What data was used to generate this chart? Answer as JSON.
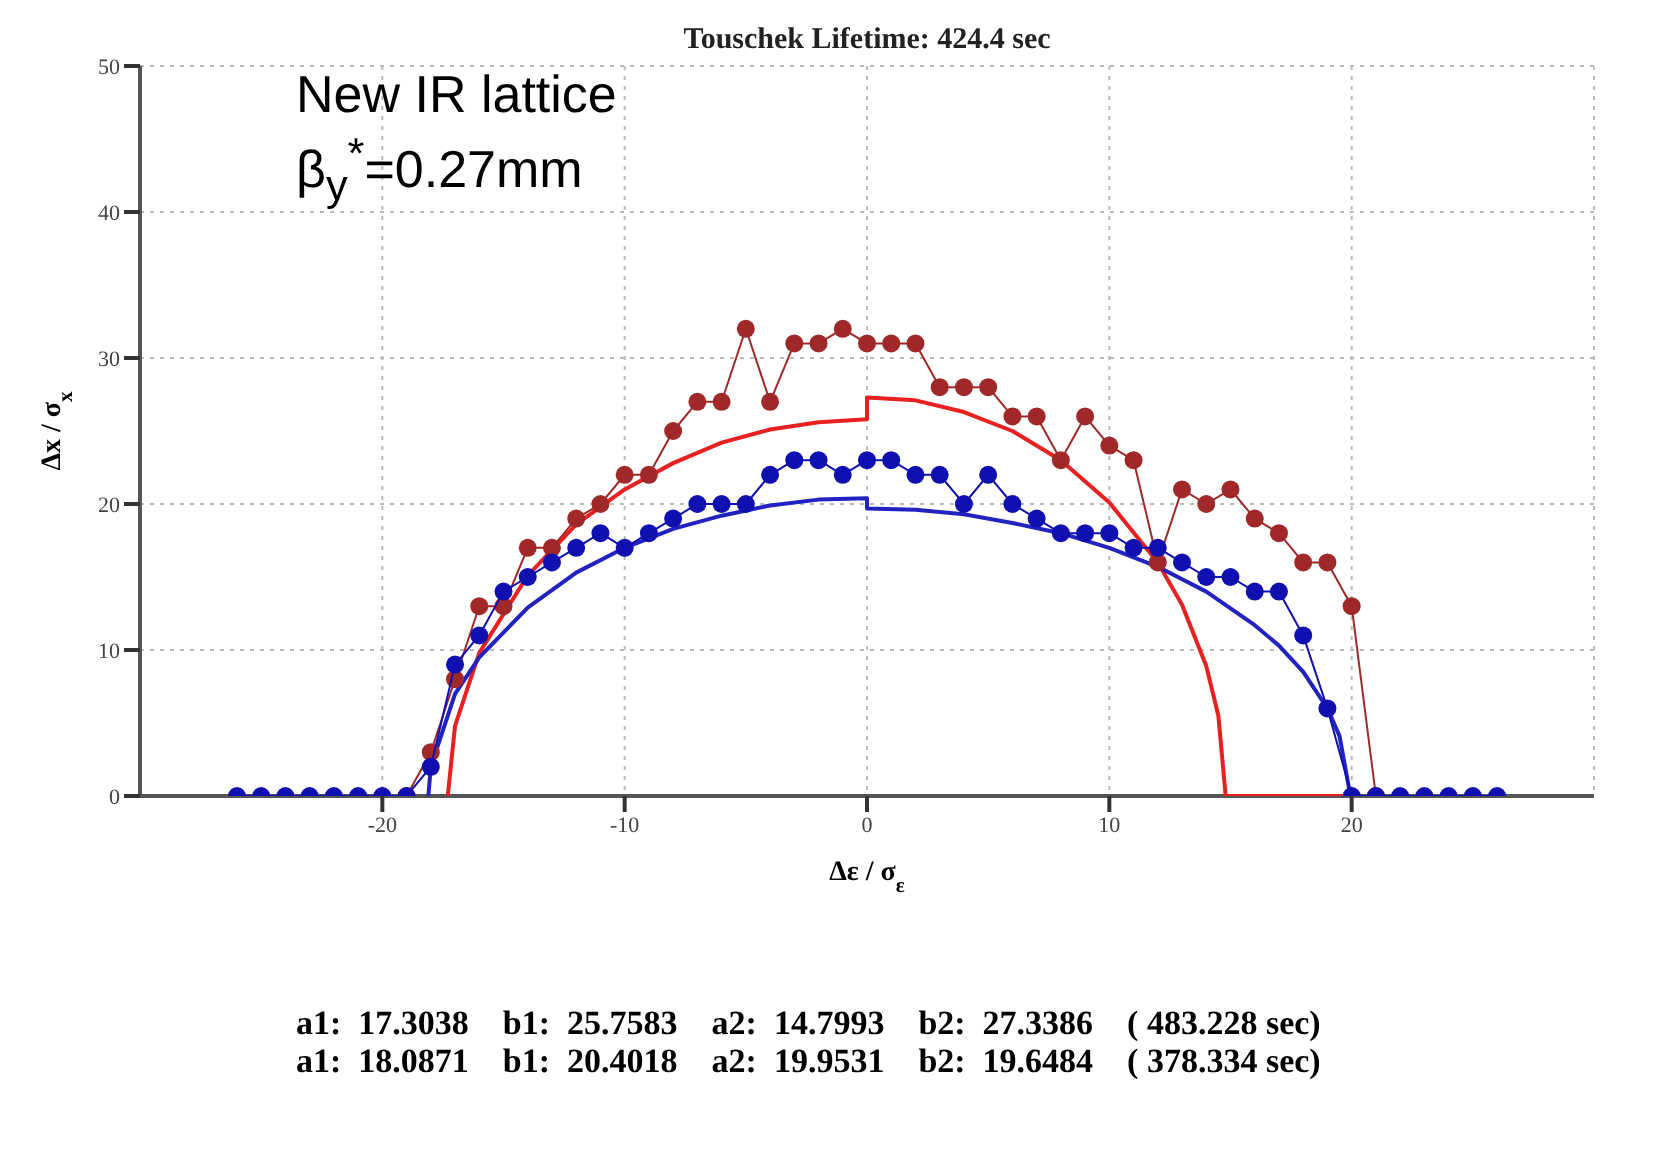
{
  "chart_data": {
    "type": "line",
    "title": "Touschek Lifetime: 424.4 sec",
    "xlabel": "Δε / σ$_{ε}$",
    "ylabel": "Δx / σ$_{x}$",
    "annotations": [
      {
        "text": "New IR lattice"
      },
      {
        "text": "β$_{y}$$^{*}$=0.27mm"
      },
      {
        "text": "a1:  17.3038    b1:  25.7583    a2:  14.7993    b2:  27.3386    ( 483.228 sec)"
      },
      {
        "text": "a1:  18.0871    b1:  20.4018    a2:  19.9531    b2:  19.6484    ( 378.334 sec)"
      }
    ],
    "xlim": [
      -30,
      30
    ],
    "xticks": [
      -20,
      -10,
      0,
      10,
      20
    ],
    "ylim": [
      0,
      50
    ],
    "yticks": [
      0,
      10,
      20,
      30,
      40,
      50
    ],
    "grid": true,
    "line_style": "solid",
    "series": [
      {
        "color": "#e82020",
        "marker": "none",
        "x": [
          -17.3,
          -17,
          -16,
          -14,
          -12,
          -10,
          -8,
          -6,
          -4,
          -2,
          0,
          0,
          2,
          4,
          6,
          8,
          10,
          12,
          13,
          14,
          14.5,
          14.8,
          20
        ],
        "values": [
          0,
          4.8,
          9.8,
          15.1,
          18.6,
          21,
          22.8,
          24.2,
          25.1,
          25.6,
          25.8,
          27.3,
          27.1,
          26.3,
          25,
          23,
          20.1,
          16,
          13.1,
          8.9,
          5.5,
          0,
          0
        ]
      },
      {
        "color": "#2222c0",
        "marker": "none",
        "x": [
          -18.1,
          -18,
          -17,
          -16,
          -14,
          -12,
          -10,
          -8,
          -6,
          -4,
          -2,
          0,
          0,
          2,
          4,
          6,
          8,
          10,
          12,
          14,
          16,
          17,
          18,
          19,
          19.5,
          19.95
        ],
        "values": [
          0,
          2,
          7,
          9.5,
          12.9,
          15.3,
          17,
          18.3,
          19.2,
          19.9,
          20.3,
          20.4,
          19.7,
          19.6,
          19.3,
          18.7,
          18,
          17,
          15.7,
          14,
          11.7,
          10.3,
          8.5,
          6,
          4.1,
          0
        ]
      },
      {
        "color": "#a02828",
        "marker": "circle",
        "x": [
          -19,
          -18,
          -17,
          -16,
          -15,
          -14,
          -13,
          -12,
          -11,
          -10,
          -9,
          -8,
          -7,
          -6,
          -5,
          -4,
          -3,
          -2,
          -1,
          0,
          1,
          2,
          3,
          4,
          5,
          6,
          7,
          8,
          9,
          10,
          11,
          12,
          13,
          14,
          15,
          16,
          17,
          18,
          19,
          20,
          21
        ],
        "values": [
          0,
          3,
          8,
          13,
          13,
          17,
          17,
          19,
          20,
          22,
          22,
          25,
          27,
          27,
          32,
          27,
          31,
          31,
          32,
          31,
          31,
          31,
          28,
          28,
          28,
          26,
          26,
          23,
          26,
          24,
          23,
          16,
          21,
          20,
          21,
          19,
          18,
          16,
          16,
          13,
          0
        ]
      },
      {
        "color": "#1010b0",
        "marker": "circle",
        "x": [
          -26,
          -25,
          -24,
          -23,
          -22,
          -21,
          -20,
          -19,
          -18,
          -17,
          -16,
          -15,
          -14,
          -13,
          -12,
          -11,
          -10,
          -9,
          -8,
          -7,
          -6,
          -5,
          -4,
          -3,
          -2,
          -1,
          0,
          1,
          2,
          3,
          4,
          5,
          6,
          7,
          8,
          9,
          10,
          11,
          12,
          13,
          14,
          15,
          16,
          17,
          18,
          19,
          20,
          21,
          22,
          23,
          24,
          25,
          26
        ],
        "values": [
          0,
          0,
          0,
          0,
          0,
          0,
          0,
          0,
          2,
          9,
          11,
          14,
          15,
          16,
          17,
          18,
          17,
          18,
          19,
          20,
          20,
          20,
          22,
          23,
          23,
          22,
          23,
          23,
          22,
          22,
          20,
          22,
          20,
          19,
          18,
          18,
          18,
          17,
          17,
          16,
          15,
          15,
          14,
          14,
          11,
          6,
          0,
          0,
          0,
          0,
          0,
          0,
          0
        ]
      }
    ]
  }
}
